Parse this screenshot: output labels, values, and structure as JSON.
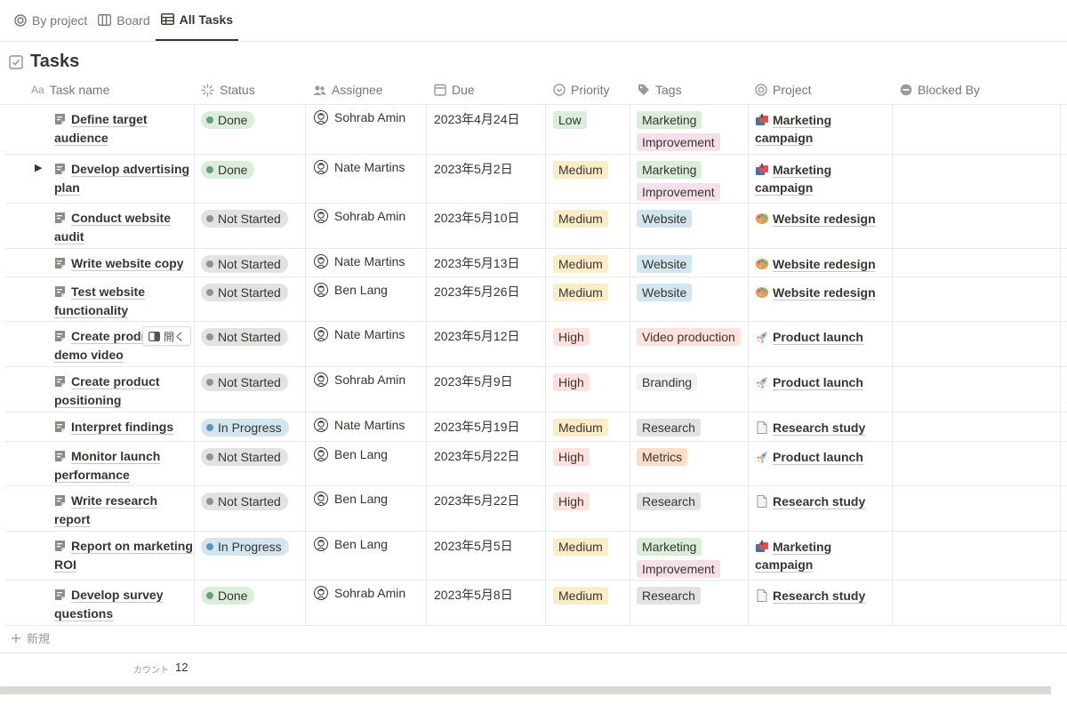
{
  "tabs": [
    {
      "label": "By project",
      "icon": "target-icon",
      "active": false
    },
    {
      "label": "Board",
      "icon": "board-icon",
      "active": false
    },
    {
      "label": "All Tasks",
      "icon": "table-icon",
      "active": true
    }
  ],
  "title": "Tasks",
  "columns": [
    "Task name",
    "Status",
    "Assignee",
    "Due",
    "Priority",
    "Tags",
    "Project",
    "Blocked By"
  ],
  "column_prefix": "Aa",
  "open_button_label": "開く",
  "colors": {
    "done_bg": "#dbeddb",
    "done_dot": "#6c9b7d",
    "notstarted_bg": "#e3e2e0",
    "notstarted_dot": "#91918e",
    "inprogress_bg": "#d3e5ef",
    "inprogress_dot": "#5b97bd",
    "low_bg": "#dbeddb",
    "medium_bg": "#fdecc8",
    "high_bg": "#ffe2dd",
    "marketing_bg": "#dbeddb",
    "improvement_bg": "#f5e0e9",
    "website_bg": "#d3e5ef",
    "video_bg": "#ffe2dd",
    "branding_bg": "#f1f1ef",
    "research_bg": "#e3e2e0",
    "metrics_bg": "#fadec9"
  },
  "rows": [
    {
      "name_line1": "Define target",
      "name_line2": "audience",
      "expandable": false,
      "status": "Done",
      "assignee": "Sohrab Amin",
      "due": "2023年4月24日",
      "priority": "Low",
      "tags": [
        "Marketing",
        "Improvement"
      ],
      "project_line1": "Marketing",
      "project_line2": "campaign",
      "project_icon": "mailbox-icon"
    },
    {
      "name_line1": "Develop advertising",
      "name_line2": "plan",
      "expandable": true,
      "status": "Done",
      "assignee": "Nate Martins",
      "due": "2023年5月2日",
      "priority": "Medium",
      "tags": [
        "Marketing",
        "Improvement"
      ],
      "project_line1": "Marketing",
      "project_line2": "campaign",
      "project_icon": "mailbox-icon"
    },
    {
      "name_line1": "Conduct website",
      "name_line2": "audit",
      "expandable": false,
      "status": "Not Started",
      "assignee": "Sohrab Amin",
      "due": "2023年5月10日",
      "priority": "Medium",
      "tags": [
        "Website"
      ],
      "project_line1": "Website redesign",
      "project_line2": "",
      "project_icon": "palette-icon"
    },
    {
      "name_line1": "Write website copy",
      "name_line2": "",
      "expandable": false,
      "status": "Not Started",
      "assignee": "Nate Martins",
      "due": "2023年5月13日",
      "priority": "Medium",
      "tags": [
        "Website"
      ],
      "project_line1": "Website redesign",
      "project_line2": "",
      "project_icon": "palette-icon"
    },
    {
      "name_line1": "Test website",
      "name_line2": "functionality",
      "expandable": false,
      "status": "Not Started",
      "assignee": "Ben Lang",
      "due": "2023年5月26日",
      "priority": "Medium",
      "tags": [
        "Website"
      ],
      "project_line1": "Website redesign",
      "project_line2": "",
      "project_icon": "palette-icon"
    },
    {
      "name_line1": "Create prodı",
      "name_line2": "demo video",
      "expandable": false,
      "hover": true,
      "status": "Not Started",
      "assignee": "Nate Martins",
      "due": "2023年5月12日",
      "priority": "High",
      "tags": [
        "Video production"
      ],
      "project_line1": "Product launch",
      "project_line2": "",
      "project_icon": "rocket-icon"
    },
    {
      "name_line1": "Create product",
      "name_line2": "positioning",
      "expandable": false,
      "status": "Not Started",
      "assignee": "Sohrab Amin",
      "due": "2023年5月9日",
      "priority": "High",
      "tags": [
        "Branding"
      ],
      "project_line1": "Product launch",
      "project_line2": "",
      "project_icon": "rocket-icon"
    },
    {
      "name_line1": "Interpret findings",
      "name_line2": "",
      "expandable": false,
      "status": "In Progress",
      "assignee": "Nate Martins",
      "due": "2023年5月19日",
      "priority": "Medium",
      "tags": [
        "Research"
      ],
      "project_line1": "Research study",
      "project_line2": "",
      "project_icon": "page-icon"
    },
    {
      "name_line1": "Monitor launch",
      "name_line2": "performance",
      "expandable": false,
      "status": "Not Started",
      "assignee": "Ben Lang",
      "due": "2023年5月22日",
      "priority": "High",
      "tags": [
        "Metrics"
      ],
      "project_line1": "Product launch",
      "project_line2": "",
      "project_icon": "rocket-icon"
    },
    {
      "name_line1": "Write research",
      "name_line2": "report",
      "expandable": false,
      "status": "Not Started",
      "assignee": "Ben Lang",
      "due": "2023年5月22日",
      "priority": "High",
      "tags": [
        "Research"
      ],
      "project_line1": "Research study",
      "project_line2": "",
      "project_icon": "page-icon"
    },
    {
      "name_line1": "Report on marketing",
      "name_line2": "ROI",
      "expandable": false,
      "status": "In Progress",
      "assignee": "Ben Lang",
      "due": "2023年5月5日",
      "priority": "Medium",
      "tags": [
        "Marketing",
        "Improvement"
      ],
      "project_line1": "Marketing",
      "project_line2": "campaign",
      "project_icon": "mailbox-icon"
    },
    {
      "name_line1": "Develop survey",
      "name_line2": "questions",
      "expandable": false,
      "status": "Done",
      "assignee": "Sohrab Amin",
      "due": "2023年5月8日",
      "priority": "Medium",
      "tags": [
        "Research"
      ],
      "project_line1": "Research study",
      "project_line2": "",
      "project_icon": "page-icon"
    }
  ],
  "new_label": "新規",
  "count_label": "カウント",
  "count_value": "12"
}
